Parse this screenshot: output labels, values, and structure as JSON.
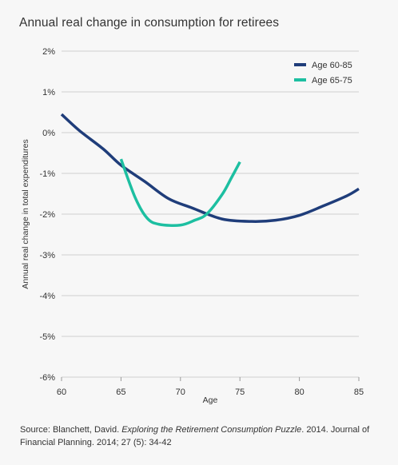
{
  "title": "Annual real change in consumption for retirees",
  "source": {
    "prefix": "Source: Blanchett, David. ",
    "italic": "Exploring the Retirement Consumption Puzzle",
    "suffix": ". 2014. Journal of Financial Planning. 2014; 27 (5): 34-42"
  },
  "chart_data": {
    "type": "line",
    "title": "Annual real change in consumption for retirees",
    "xlabel": "Age",
    "ylabel": "Annual real change in total expenditures",
    "xlim": [
      60,
      85
    ],
    "ylim": [
      -6,
      2
    ],
    "x_ticks": [
      60,
      65,
      70,
      75,
      80,
      85
    ],
    "x_tick_labels": [
      "60",
      "65",
      "70",
      "75",
      "80",
      "85"
    ],
    "y_ticks": [
      2,
      1,
      0,
      -1,
      -2,
      -3,
      -4,
      -5,
      -6
    ],
    "y_tick_labels": [
      "2%",
      "1%",
      "0%",
      "-1%",
      "-2%",
      "-3%",
      "-4%",
      "-5%",
      "-6%"
    ],
    "y_unit": "%",
    "grid": "horizontal",
    "legend_position": "top-right",
    "series": [
      {
        "name": "Age 60-85",
        "color": "#1f3d7a",
        "points": [
          [
            60,
            0.45
          ],
          [
            61.5,
            0.05
          ],
          [
            63.5,
            -0.4
          ],
          [
            65,
            -0.8
          ],
          [
            67,
            -1.2
          ],
          [
            69,
            -1.62
          ],
          [
            71,
            -1.85
          ],
          [
            73.5,
            -2.12
          ],
          [
            76,
            -2.18
          ],
          [
            78,
            -2.15
          ],
          [
            80,
            -2.03
          ],
          [
            82,
            -1.8
          ],
          [
            84,
            -1.55
          ],
          [
            85,
            -1.38
          ]
        ]
      },
      {
        "name": "Age 65-75",
        "color": "#1dbfa1",
        "points": [
          [
            65,
            -0.65
          ],
          [
            66.2,
            -1.6
          ],
          [
            67.2,
            -2.1
          ],
          [
            68.2,
            -2.25
          ],
          [
            70,
            -2.27
          ],
          [
            71.2,
            -2.15
          ],
          [
            72.2,
            -2.0
          ],
          [
            73.5,
            -1.52
          ],
          [
            74.3,
            -1.1
          ],
          [
            75,
            -0.72
          ]
        ]
      }
    ]
  }
}
